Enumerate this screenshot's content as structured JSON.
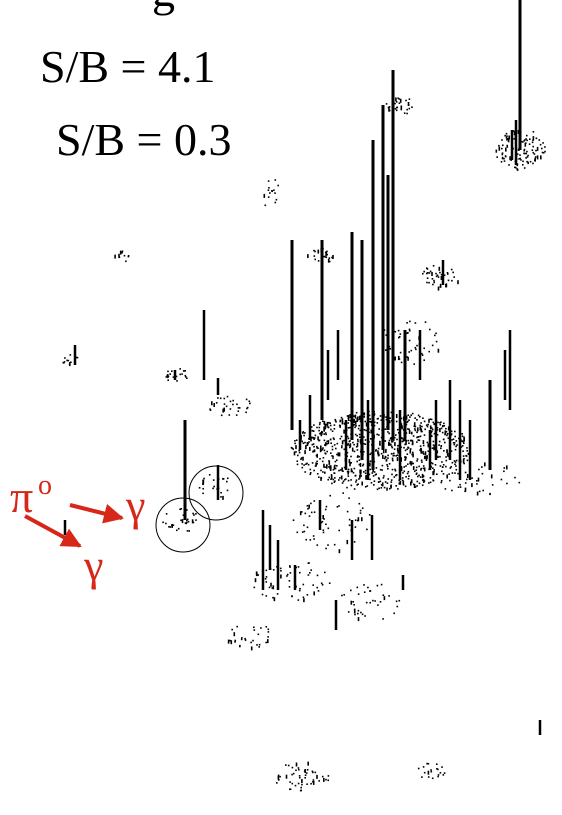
{
  "labels": {
    "top_fragment": "g",
    "sb_first": "S/B = 4.1",
    "sb_second": "S/B = 0.3"
  },
  "annotation": {
    "pi": "π",
    "pi_sup": "o",
    "gamma_first": "γ",
    "gamma_second": "γ"
  }
}
